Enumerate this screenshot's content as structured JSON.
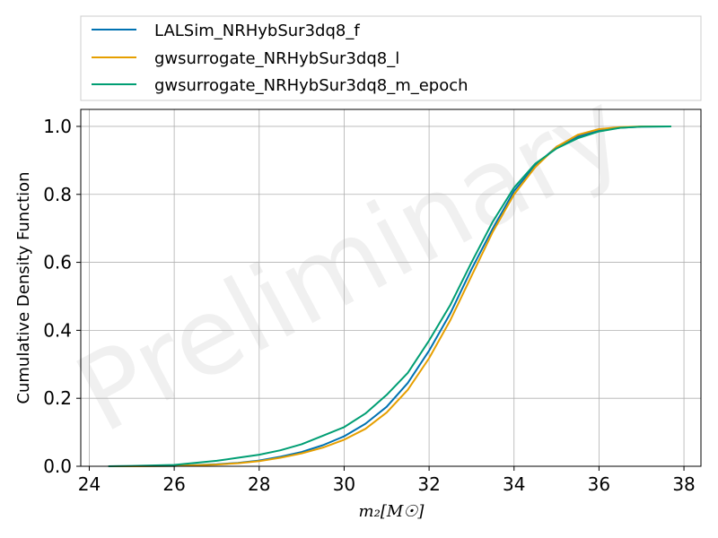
{
  "chart_data": {
    "type": "line",
    "title": "",
    "xlabel": "m₂[M☉]",
    "ylabel": "Cumulative Density Function",
    "xlim": [
      23.8,
      38.4
    ],
    "ylim": [
      0.0,
      1.05
    ],
    "xticks": [
      24,
      26,
      28,
      30,
      32,
      34,
      36,
      38
    ],
    "yticks": [
      0.0,
      0.2,
      0.4,
      0.6,
      0.8,
      1.0
    ],
    "xtick_labels": [
      "24",
      "26",
      "28",
      "30",
      "32",
      "34",
      "36",
      "38"
    ],
    "ytick_labels": [
      "0.0",
      "0.2",
      "0.4",
      "0.6",
      "0.8",
      "1.0"
    ],
    "grid": true,
    "legend_position": "above plot",
    "watermark": "Preliminary",
    "series": [
      {
        "name": "LALSim_NRHybSur3dq8_f",
        "color": "#0072b2",
        "x": [
          24.45,
          25.0,
          26.0,
          27.0,
          27.5,
          28.0,
          28.5,
          29.0,
          29.5,
          30.0,
          30.5,
          31.0,
          31.5,
          32.0,
          32.5,
          33.0,
          33.5,
          34.0,
          34.5,
          35.0,
          35.5,
          36.0,
          36.5,
          37.0,
          37.7
        ],
        "y": [
          0.0,
          0.0,
          0.001,
          0.006,
          0.01,
          0.017,
          0.028,
          0.042,
          0.062,
          0.088,
          0.125,
          0.175,
          0.245,
          0.34,
          0.45,
          0.58,
          0.7,
          0.81,
          0.885,
          0.94,
          0.97,
          0.988,
          0.996,
          0.999,
          1.0
        ]
      },
      {
        "name": "gwsurrogate_NRHybSur3dq8_l",
        "color": "#e69f00",
        "x": [
          24.45,
          25.0,
          26.0,
          27.0,
          27.5,
          28.0,
          28.5,
          29.0,
          29.5,
          30.0,
          30.5,
          31.0,
          31.5,
          32.0,
          32.5,
          33.0,
          33.5,
          34.0,
          34.5,
          35.0,
          35.5,
          36.0,
          36.5,
          37.0,
          37.7
        ],
        "y": [
          0.0,
          0.0,
          0.001,
          0.005,
          0.009,
          0.015,
          0.025,
          0.038,
          0.055,
          0.078,
          0.11,
          0.158,
          0.225,
          0.318,
          0.43,
          0.56,
          0.69,
          0.8,
          0.88,
          0.94,
          0.975,
          0.992,
          0.998,
          1.0,
          1.0
        ]
      },
      {
        "name": "gwsurrogate_NRHybSur3dq8_m_epoch",
        "color": "#009e73",
        "x": [
          24.45,
          25.0,
          26.0,
          27.0,
          27.5,
          28.0,
          28.5,
          29.0,
          29.5,
          30.0,
          30.5,
          31.0,
          31.5,
          32.0,
          32.5,
          33.0,
          33.5,
          34.0,
          34.5,
          35.0,
          35.5,
          36.0,
          36.5,
          37.0,
          37.7
        ],
        "y": [
          0.0,
          0.001,
          0.004,
          0.016,
          0.025,
          0.034,
          0.047,
          0.065,
          0.09,
          0.115,
          0.155,
          0.21,
          0.275,
          0.37,
          0.475,
          0.6,
          0.72,
          0.82,
          0.89,
          0.935,
          0.965,
          0.985,
          0.996,
          0.999,
          1.0
        ]
      }
    ]
  }
}
